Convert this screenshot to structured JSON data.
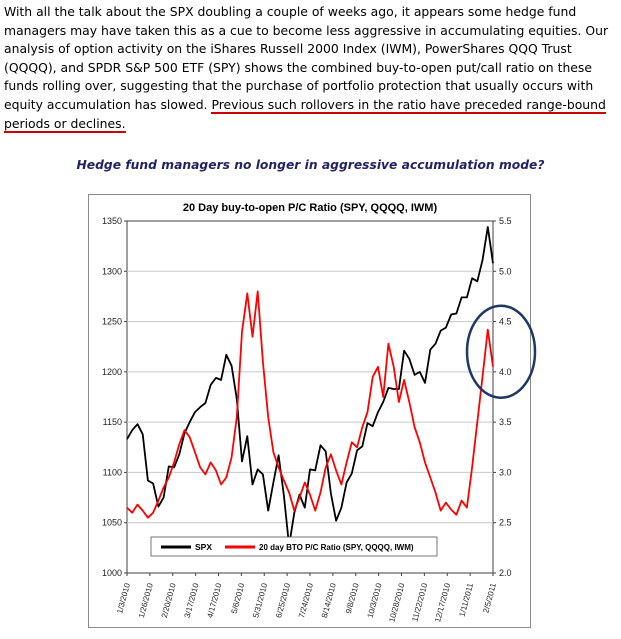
{
  "article": {
    "paragraph_normal": "With all the talk about the SPX doubling a couple of weeks ago, it appears some hedge fund managers may have taken this as a cue to become less aggressive in accumulating equities. Our analysis of option activity on the iShares Russell 2000 Index (IWM), PowerShares QQQ Trust (QQQQ), and SPDR S&P 500 ETF (SPY) shows the combined buy-to-open put/call ratio on these funds rolling over, suggesting that the purchase of portfolio protection that usually occurs with equity accumulation has slowed. ",
    "paragraph_underlined": "Previous such rollovers in the ratio have preceded range-bound periods or declines.",
    "heading": "Hedge fund managers no longer in aggressive accumulation mode?"
  },
  "colors": {
    "underline_red": "#cc0000",
    "spx_line": "#000000",
    "ratio_line": "#ff0000",
    "annotation_blue": "#1f3864",
    "grid_gray": "#c8c8c8",
    "tick_text": "#222222"
  },
  "chart_data": {
    "type": "line",
    "title": "20 Day buy-to-open P/C Ratio (SPY, QQQQ, IWM)",
    "grid": true,
    "legend_position": "bottom-center-inside",
    "x_tick_labels": [
      "1/3/2010",
      "1/26/2010",
      "2/20/2010",
      "3/17/2010",
      "4/17/2010",
      "5/6/2010",
      "5/31/2010",
      "6/25/2010",
      "7/24/2010",
      "8/14/2010",
      "9/8/2010",
      "10/3/2010",
      "10/28/2010",
      "11/22/2010",
      "12/17/2010",
      "1/11/2011",
      "2/5/2011"
    ],
    "left_axis": {
      "label": "SPX",
      "min": 1000,
      "max": 1350,
      "step": 50,
      "tick_labels": [
        "1350",
        "1300",
        "1250",
        "1200",
        "1150",
        "1100",
        "1050",
        "1000"
      ]
    },
    "right_axis": {
      "label": "20 day BTO P/C Ratio",
      "min": 2.0,
      "max": 5.5,
      "step": 0.5,
      "tick_labels": [
        "5.5",
        "5.0",
        "4.5",
        "4.0",
        "3.5",
        "3.0",
        "2.5",
        "2.0"
      ]
    },
    "series": [
      {
        "name": "SPX",
        "axis": "left",
        "color": "#000000",
        "data_name": "spx-line",
        "values": [
          1133,
          1142,
          1148,
          1138,
          1092,
          1089,
          1066,
          1075,
          1106,
          1105,
          1118,
          1139,
          1150,
          1160,
          1165,
          1169,
          1187,
          1194,
          1192,
          1217,
          1206,
          1173,
          1111,
          1136,
          1088,
          1103,
          1098,
          1062,
          1090,
          1117,
          1077,
          1027,
          1060,
          1078,
          1065,
          1103,
          1102,
          1127,
          1121,
          1079,
          1052,
          1065,
          1090,
          1099,
          1122,
          1126,
          1149,
          1146,
          1160,
          1170,
          1184,
          1183,
          1183,
          1221,
          1213,
          1197,
          1200,
          1189,
          1222,
          1228,
          1241,
          1244,
          1257,
          1258,
          1274,
          1274,
          1293,
          1290,
          1311,
          1344,
          1308
        ]
      },
      {
        "name": "20 day BTO P/C Ratio (SPY, QQQQ, IWM)",
        "axis": "right",
        "color": "#ff0000",
        "data_name": "ratio-line",
        "values": [
          2.65,
          2.6,
          2.68,
          2.62,
          2.55,
          2.6,
          2.72,
          2.85,
          2.95,
          3.1,
          3.28,
          3.42,
          3.35,
          3.2,
          3.05,
          2.98,
          3.1,
          3.02,
          2.88,
          2.95,
          3.15,
          3.55,
          4.4,
          4.78,
          4.35,
          4.8,
          4.1,
          3.55,
          3.2,
          3.05,
          2.92,
          2.8,
          2.62,
          2.75,
          2.9,
          2.78,
          2.62,
          2.8,
          3.05,
          3.18,
          3.02,
          2.88,
          3.1,
          3.3,
          3.25,
          3.45,
          3.6,
          3.95,
          4.05,
          3.75,
          4.28,
          4.05,
          3.7,
          3.92,
          3.7,
          3.45,
          3.3,
          3.1,
          2.95,
          2.8,
          2.62,
          2.7,
          2.63,
          2.58,
          2.72,
          2.65,
          3.05,
          3.5,
          3.95,
          4.42,
          4.05
        ],
        "decimals": 2
      }
    ],
    "legend": [
      {
        "label": "SPX",
        "color": "#000000"
      },
      {
        "label": "20 day BTO P/C Ratio (SPY,  QQQQ, IWM)",
        "color": "#ff0000"
      }
    ],
    "annotation": {
      "type": "ellipse",
      "color": "#1f3864",
      "center_value_right_axis": 4.2,
      "note": "circle highlighting recent rollover of the ratio near the right edge"
    }
  }
}
